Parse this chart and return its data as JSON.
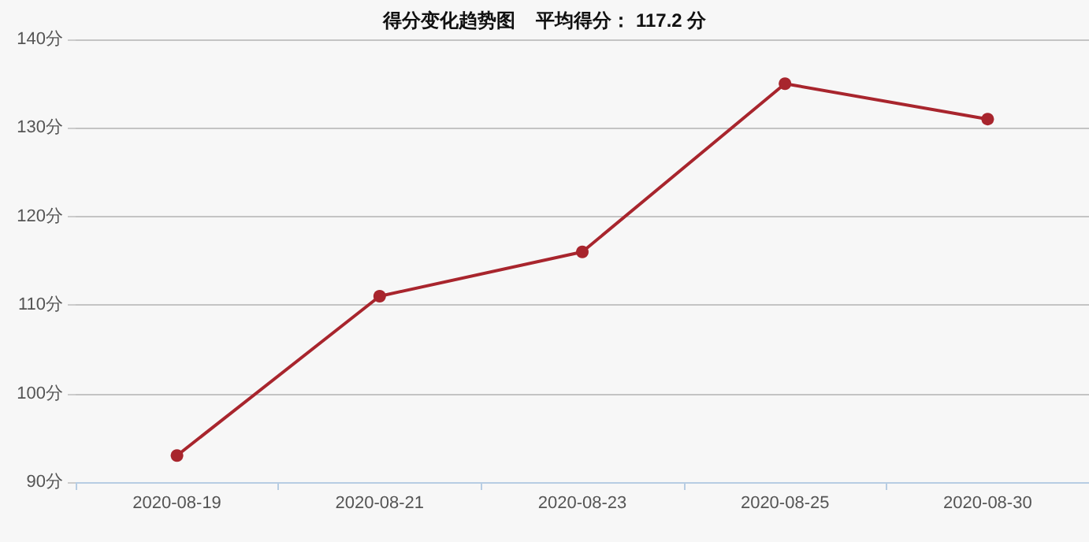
{
  "chart_data": {
    "type": "line",
    "title": "得分变化趋势图    平均得分： 117.2 分",
    "categories": [
      "2020-08-19",
      "2020-08-21",
      "2020-08-23",
      "2020-08-25",
      "2020-08-30"
    ],
    "series": [
      {
        "color": "#a8252d",
        "values": [
          93,
          111,
          116,
          135,
          131
        ]
      }
    ],
    "ylim": [
      90,
      140
    ],
    "yticks": [
      {
        "value": 90,
        "label": "90分"
      },
      {
        "value": 100,
        "label": "100分"
      },
      {
        "value": 110,
        "label": "110分"
      },
      {
        "value": 120,
        "label": "120分"
      },
      {
        "value": 130,
        "label": "130分"
      },
      {
        "value": 140,
        "label": "140分"
      }
    ],
    "grid": "y",
    "marker": "circle",
    "line_style": "solid"
  }
}
